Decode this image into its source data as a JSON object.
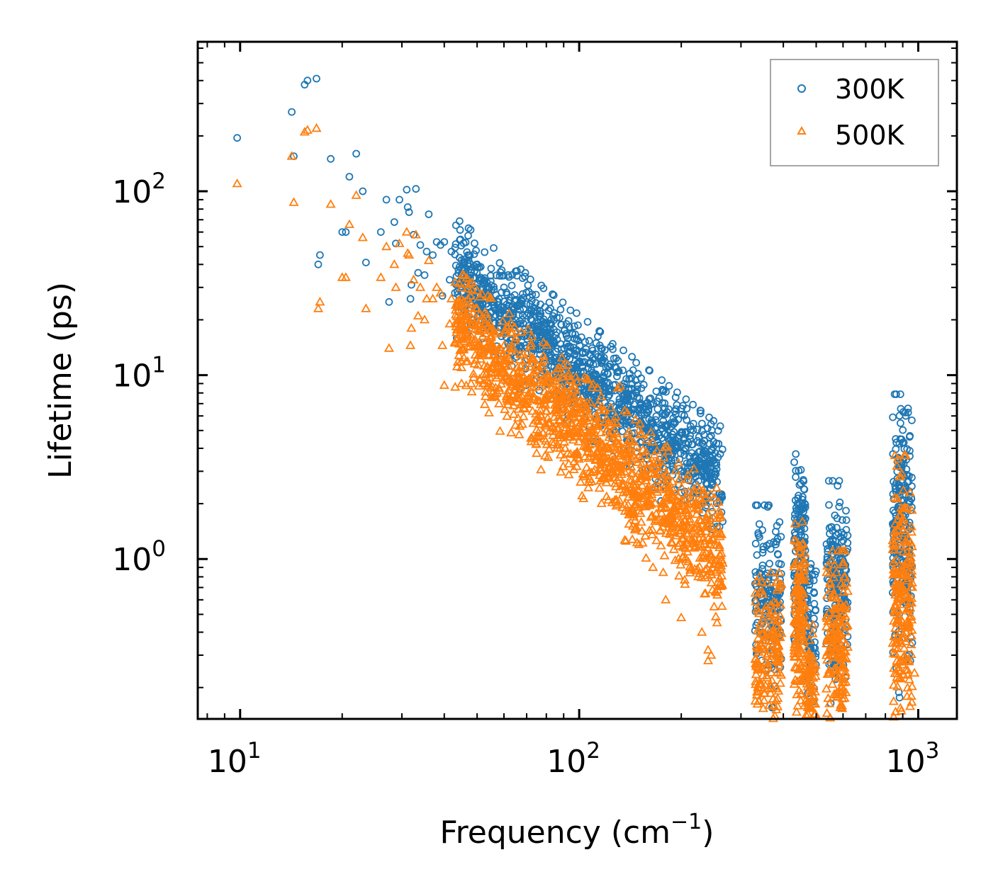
{
  "chart_data": {
    "type": "scatter",
    "xscale": "log",
    "yscale": "log",
    "xlabel": "Frequency (cm",
    "xlabel_sup": "−1",
    "xlabel_end": ")",
    "ylabel": "Lifetime (ps)",
    "xlim": [
      7.5,
      1300
    ],
    "ylim": [
      0.135,
      650
    ],
    "xticks": [
      {
        "value": 10,
        "base": "10",
        "exp": "1"
      },
      {
        "value": 100,
        "base": "10",
        "exp": "2"
      },
      {
        "value": 1000,
        "base": "10",
        "exp": "3"
      }
    ],
    "yticks": [
      {
        "value": 1,
        "base": "10",
        "exp": "0"
      },
      {
        "value": 10,
        "base": "10",
        "exp": "1"
      },
      {
        "value": 100,
        "base": "10",
        "exp": "2"
      }
    ],
    "legend": {
      "location": "top-right",
      "entries": [
        "300K",
        "500K"
      ]
    },
    "colors": {
      "300K": "#1f77b4",
      "500K": "#ff7f0e"
    },
    "series": [
      {
        "name": "300K",
        "marker": "circle",
        "color": "#1f77b4",
        "points": [
          [
            9.8,
            195
          ],
          [
            14.2,
            270
          ],
          [
            14.4,
            155
          ],
          [
            15.5,
            380
          ],
          [
            15.8,
            400
          ],
          [
            16.8,
            410
          ],
          [
            17.0,
            40
          ],
          [
            17.2,
            45
          ],
          [
            18.5,
            150
          ],
          [
            20.0,
            60
          ],
          [
            20.5,
            60
          ],
          [
            21.0,
            120
          ],
          [
            22.0,
            160
          ],
          [
            23.0,
            100
          ],
          [
            23.5,
            41
          ],
          [
            26.0,
            60
          ],
          [
            27.0,
            90
          ],
          [
            27.5,
            25
          ],
          [
            28.5,
            68
          ],
          [
            28.8,
            52
          ],
          [
            29.5,
            90
          ],
          [
            31.0,
            102
          ],
          [
            31.2,
            82
          ],
          [
            31.5,
            77
          ],
          [
            31.8,
            26
          ],
          [
            32.0,
            31
          ],
          [
            32.5,
            58
          ],
          [
            33.0,
            103
          ],
          [
            33.5,
            36
          ],
          [
            34.0,
            51
          ],
          [
            35.0,
            35
          ],
          [
            35.5,
            47
          ],
          [
            36.0,
            75
          ],
          [
            37.0,
            45
          ],
          [
            38.0,
            53
          ],
          [
            39.0,
            51
          ],
          [
            39.5,
            27
          ],
          [
            40.0,
            53
          ],
          [
            41.5,
            33
          ],
          [
            42.0,
            47
          ],
          [
            43.0,
            28
          ],
          [
            45.0,
            30
          ],
          [
            46.0,
            38
          ],
          [
            47.0,
            45
          ],
          [
            48.0,
            36
          ],
          [
            50.0,
            40
          ],
          [
            52.0,
            32
          ],
          [
            55.0,
            38
          ],
          [
            58.0,
            26
          ],
          [
            60.0,
            30
          ],
          [
            112,
            13
          ],
          [
            115,
            14.5
          ],
          [
            116,
            14
          ],
          [
            120,
            11
          ]
        ],
        "clusters": [
          {
            "x": [
              43,
              265
            ],
            "slope": -1.45,
            "anchor": [
              50,
              29
            ],
            "spread": 0.3,
            "count": 1300
          },
          {
            "x": [
              330,
              395
            ],
            "slope": 0,
            "anchor": [
              360,
              0.62
            ],
            "spread": 0.5,
            "count": 160
          },
          {
            "x": [
              430,
              465
            ],
            "slope": 0,
            "anchor": [
              447,
              1.05
            ],
            "spread": 0.55,
            "count": 140
          },
          {
            "x": [
              465,
              500
            ],
            "slope": 0,
            "anchor": [
              480,
              0.42
            ],
            "spread": 0.35,
            "count": 70
          },
          {
            "x": [
              535,
              620
            ],
            "slope": 0,
            "anchor": [
              575,
              0.75
            ],
            "spread": 0.55,
            "count": 180
          },
          {
            "x": [
              840,
              960
            ],
            "slope": 0,
            "anchor": [
              890,
              1.4
            ],
            "spread": 0.75,
            "count": 220
          }
        ],
        "extra_points": [
          [
            858,
            4.5
          ],
          [
            862,
            4.3
          ],
          [
            855,
            2.5
          ],
          [
            875,
            3.2
          ],
          [
            960,
            0.35
          ],
          [
            455,
            2.0
          ],
          [
            450,
            1.9
          ],
          [
            560,
            1.2
          ],
          [
            570,
            1.25
          ],
          [
            338,
            1.35
          ],
          [
            380,
            1.2
          ],
          [
            265,
            1.6
          ],
          [
            255,
            1.5
          ],
          [
            170,
            7.2
          ],
          [
            172,
            7.5
          ],
          [
            150,
            6.5
          ],
          [
            160,
            6.8
          ]
        ]
      },
      {
        "name": "500K",
        "marker": "triangle",
        "color": "#ff7f0e",
        "points": [
          [
            9.8,
            110
          ],
          [
            14.2,
            155
          ],
          [
            14.4,
            87
          ],
          [
            15.5,
            210
          ],
          [
            15.8,
            215
          ],
          [
            16.8,
            220
          ],
          [
            17.0,
            23
          ],
          [
            17.2,
            25
          ],
          [
            18.5,
            85
          ],
          [
            20.0,
            34
          ],
          [
            20.5,
            34
          ],
          [
            21.0,
            66
          ],
          [
            22.0,
            95
          ],
          [
            23.0,
            56
          ],
          [
            23.5,
            23
          ],
          [
            26.0,
            34
          ],
          [
            27.0,
            50
          ],
          [
            27.5,
            14
          ],
          [
            28.5,
            40
          ],
          [
            28.8,
            30
          ],
          [
            29.5,
            52
          ],
          [
            31.0,
            60
          ],
          [
            31.2,
            46
          ],
          [
            31.5,
            45
          ],
          [
            31.8,
            14.5
          ],
          [
            32.0,
            18
          ],
          [
            32.5,
            33
          ],
          [
            33.0,
            58
          ],
          [
            33.5,
            21
          ],
          [
            34.0,
            30
          ],
          [
            35.0,
            20
          ],
          [
            35.5,
            26
          ],
          [
            36.0,
            42
          ],
          [
            37.0,
            26
          ],
          [
            38.0,
            30
          ],
          [
            39.0,
            28
          ],
          [
            39.5,
            14.5
          ],
          [
            40.0,
            8.8
          ],
          [
            41.5,
            19
          ],
          [
            42.0,
            26
          ],
          [
            43.0,
            15
          ],
          [
            45.0,
            9
          ],
          [
            46.0,
            22
          ],
          [
            47.0,
            26
          ],
          [
            48.0,
            9
          ],
          [
            50.0,
            23
          ],
          [
            52.0,
            9
          ],
          [
            55.0,
            11
          ],
          [
            58.0,
            8.5
          ],
          [
            60.0,
            12
          ]
        ],
        "clusters": [
          {
            "x": [
              43,
              265
            ],
            "slope": -1.55,
            "anchor": [
              50,
              14.5
            ],
            "spread": 0.32,
            "count": 1300
          },
          {
            "x": [
              330,
              395
            ],
            "slope": 0,
            "anchor": [
              360,
              0.3
            ],
            "spread": 0.45,
            "count": 160
          },
          {
            "x": [
              430,
              465
            ],
            "slope": 0,
            "anchor": [
              447,
              0.45
            ],
            "spread": 0.55,
            "count": 140
          },
          {
            "x": [
              465,
              500
            ],
            "slope": 0,
            "anchor": [
              480,
              0.22
            ],
            "spread": 0.3,
            "count": 70
          },
          {
            "x": [
              535,
              620
            ],
            "slope": 0,
            "anchor": [
              575,
              0.35
            ],
            "spread": 0.5,
            "count": 180
          },
          {
            "x": [
              840,
              960
            ],
            "slope": 0,
            "anchor": [
              890,
              0.65
            ],
            "spread": 0.75,
            "count": 220
          }
        ],
        "extra_points": [
          [
            870,
            3.5
          ],
          [
            865,
            3.2
          ],
          [
            880,
            2.8
          ],
          [
            975,
            0.24
          ],
          [
            455,
            1.2
          ],
          [
            450,
            1.1
          ],
          [
            250,
            0.55
          ],
          [
            255,
            0.45
          ],
          [
            265,
            0.95
          ],
          [
            340,
            0.8
          ],
          [
            345,
            0.75
          ],
          [
            130,
            8.5
          ],
          [
            132,
            8.7
          ],
          [
            150,
            1.2
          ],
          [
            165,
            0.9
          ],
          [
            180,
            0.6
          ],
          [
            200,
            0.48
          ],
          [
            230,
            0.4
          ],
          [
            240,
            0.32
          ],
          [
            245,
            0.3
          ],
          [
            240,
            0.28
          ]
        ]
      }
    ]
  }
}
